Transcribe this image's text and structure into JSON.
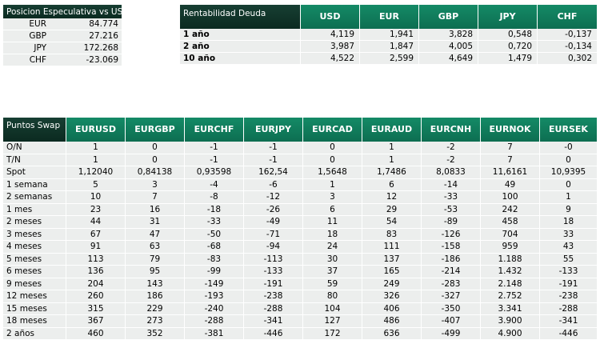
{
  "posicion": {
    "title": "Posicion Especulativa vs USD",
    "rows": [
      {
        "ccy": "EUR",
        "value": "84.774"
      },
      {
        "ccy": "GBP",
        "value": "27.216"
      },
      {
        "ccy": "JPY",
        "value": "172.268"
      },
      {
        "ccy": "CHF",
        "value": "-23.069"
      }
    ]
  },
  "rentabilidad": {
    "title": "Rentabilidad Deuda",
    "headers": [
      "USD",
      "EUR",
      "GBP",
      "JPY",
      "CHF"
    ],
    "rows": [
      {
        "label": "1 año",
        "values": [
          "4,119",
          "1,941",
          "3,828",
          "0,548",
          "-0,137"
        ]
      },
      {
        "label": "2 año",
        "values": [
          "3,987",
          "1,847",
          "4,005",
          "0,720",
          "-0,134"
        ]
      },
      {
        "label": "10 año",
        "values": [
          "4,522",
          "2,599",
          "4,649",
          "1,479",
          "0,302"
        ]
      }
    ]
  },
  "swap": {
    "title": "Puntos Swap",
    "headers": [
      "EURUSD",
      "EURGBP",
      "EURCHF",
      "EURJPY",
      "EURCAD",
      "EURAUD",
      "EURCNH",
      "EURNOK",
      "EURSEK"
    ],
    "rows": [
      {
        "label": "O/N",
        "values": [
          "1",
          "0",
          "-1",
          "-1",
          "0",
          "1",
          "-2",
          "7",
          "-0"
        ]
      },
      {
        "label": "T/N",
        "values": [
          "1",
          "0",
          "-1",
          "-1",
          "0",
          "1",
          "-2",
          "7",
          "0"
        ]
      },
      {
        "label": "Spot",
        "values": [
          "1,12040",
          "0,84138",
          "0,93598",
          "162,54",
          "1,5648",
          "1,7486",
          "8,0833",
          "11,6161",
          "10,9395"
        ]
      },
      {
        "label": "1 semana",
        "values": [
          "5",
          "3",
          "-4",
          "-6",
          "1",
          "6",
          "-14",
          "49",
          "0"
        ]
      },
      {
        "label": "2 semanas",
        "values": [
          "10",
          "7",
          "-8",
          "-12",
          "3",
          "12",
          "-33",
          "100",
          "1"
        ]
      },
      {
        "label": "1 mes",
        "values": [
          "23",
          "16",
          "-18",
          "-26",
          "6",
          "29",
          "-53",
          "242",
          "9"
        ]
      },
      {
        "label": "2 meses",
        "values": [
          "44",
          "31",
          "-33",
          "-49",
          "11",
          "54",
          "-89",
          "458",
          "18"
        ]
      },
      {
        "label": "3 meses",
        "values": [
          "67",
          "47",
          "-50",
          "-71",
          "18",
          "83",
          "-126",
          "704",
          "33"
        ]
      },
      {
        "label": "4 meses",
        "values": [
          "91",
          "63",
          "-68",
          "-94",
          "24",
          "111",
          "-158",
          "959",
          "43"
        ]
      },
      {
        "label": "5 meses",
        "values": [
          "113",
          "79",
          "-83",
          "-113",
          "30",
          "137",
          "-186",
          "1.188",
          "55"
        ]
      },
      {
        "label": "6 meses",
        "values": [
          "136",
          "95",
          "-99",
          "-133",
          "37",
          "165",
          "-214",
          "1.432",
          "-133"
        ]
      },
      {
        "label": "9 meses",
        "values": [
          "204",
          "143",
          "-149",
          "-191",
          "59",
          "249",
          "-283",
          "2.148",
          "-191"
        ]
      },
      {
        "label": "12 meses",
        "values": [
          "260",
          "186",
          "-193",
          "-238",
          "80",
          "326",
          "-327",
          "2.752",
          "-238"
        ]
      },
      {
        "label": "15 meses",
        "values": [
          "315",
          "229",
          "-240",
          "-288",
          "104",
          "406",
          "-350",
          "3.341",
          "-288"
        ]
      },
      {
        "label": "18 meses",
        "values": [
          "367",
          "273",
          "-288",
          "-341",
          "127",
          "486",
          "-407",
          "3.900",
          "-341"
        ]
      },
      {
        "label": "2 años",
        "values": [
          "460",
          "352",
          "-381",
          "-446",
          "172",
          "636",
          "-499",
          "4.900",
          "-446"
        ]
      }
    ]
  }
}
